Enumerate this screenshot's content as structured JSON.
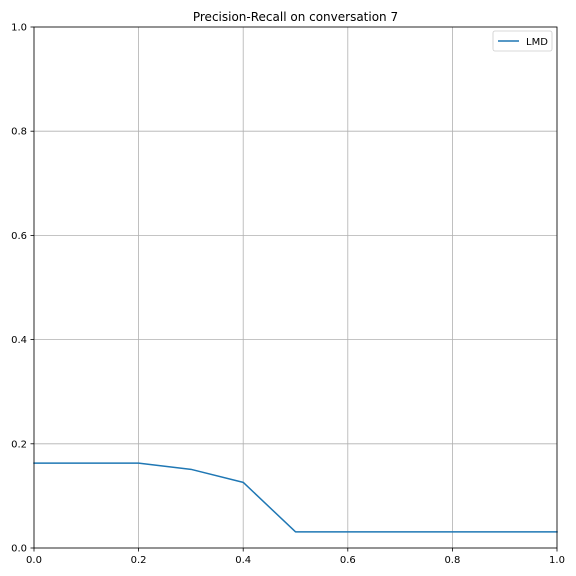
{
  "chart_data": {
    "type": "line",
    "title": "Precision-Recall on conversation 7",
    "xlabel": "",
    "ylabel": "",
    "xlim": [
      0,
      1
    ],
    "ylim": [
      0,
      1
    ],
    "xticks": [
      "0.0",
      "0.2",
      "0.4",
      "0.6",
      "0.8",
      "1.0"
    ],
    "yticks": [
      "0.0",
      "0.2",
      "0.4",
      "0.6",
      "0.8",
      "1.0"
    ],
    "grid": true,
    "legend_position": "top-right",
    "series": [
      {
        "name": "LMD",
        "color": "#1f77b4",
        "x": [
          0.0,
          0.1,
          0.2,
          0.3,
          0.4,
          0.5,
          0.6,
          0.7,
          0.8,
          0.9,
          1.0
        ],
        "y": [
          0.163,
          0.163,
          0.163,
          0.151,
          0.126,
          0.031,
          0.031,
          0.031,
          0.031,
          0.031,
          0.031
        ]
      }
    ]
  }
}
